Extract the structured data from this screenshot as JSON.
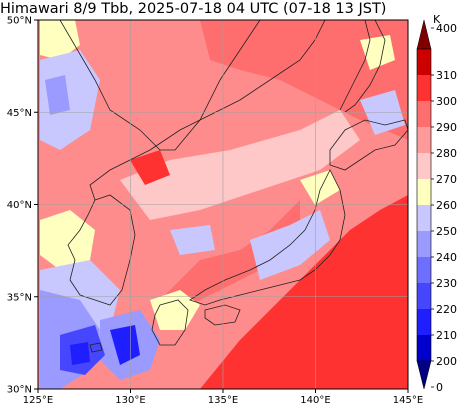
{
  "title": "Himawari 8/9 Tbb, 2025-07-18 04 UTC (07-18 13 JST)",
  "map": {
    "lon_range": [
      125,
      145
    ],
    "lat_range": [
      30,
      50
    ],
    "x_ticks": [
      "125°E",
      "130°E",
      "135°E",
      "140°E",
      "145°E"
    ],
    "y_ticks": [
      "30°N",
      "35°N",
      "40°N",
      "45°N",
      "50°N"
    ],
    "grid": true
  },
  "colorbar": {
    "unit": "K",
    "levels": [
      "0",
      "200",
      "210",
      "220",
      "230",
      "240",
      "250",
      "260",
      "270",
      "280",
      "290",
      "300",
      "310",
      "400"
    ],
    "colors": [
      "#000080",
      "#0000cd",
      "#1e1eff",
      "#4646ff",
      "#6e6eff",
      "#9a9aff",
      "#c8c8ff",
      "#ffffc0",
      "#ffc8c8",
      "#ff9a9a",
      "#ff6e6e",
      "#ff3232",
      "#cd0000",
      "#800000"
    ]
  },
  "legend_palette": {
    "cold_cloud": "#3030ff",
    "cloud": "#b0b0ff",
    "warm_cloud": "#ffffc0",
    "land": "#ff8080",
    "sea": "#ff3232"
  }
}
